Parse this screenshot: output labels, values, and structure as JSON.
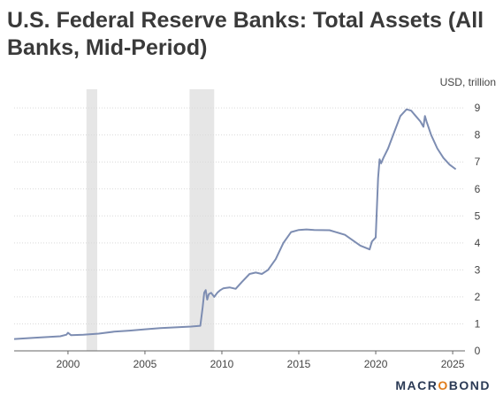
{
  "title": "U.S. Federal Reserve Banks: Total Assets (All Banks, Mid-Period)",
  "unit_label": "USD, trillion",
  "brand": {
    "pre": "MACR",
    "o": "O",
    "post": "BOND"
  },
  "colors": {
    "line": "#7d8db2",
    "shade": "#e6e6e6",
    "axis": "#666666",
    "text": "#444444"
  },
  "chart_data": {
    "type": "line",
    "title": "U.S. Federal Reserve Banks: Total Assets (All Banks, Mid-Period)",
    "ylabel": "USD, trillion",
    "xlim": [
      1996.5,
      2025.8
    ],
    "ylim": [
      0,
      9.3
    ],
    "xticks": [
      2000,
      2005,
      2010,
      2015,
      2020,
      2025
    ],
    "yticks": [
      0,
      1,
      2,
      3,
      4,
      5,
      6,
      7,
      8,
      9
    ],
    "recessions": [
      [
        2001.2,
        2001.9
      ],
      [
        2007.9,
        2009.5
      ]
    ],
    "grid": "horizontal",
    "series": [
      {
        "x": [
          1996.5,
          1998,
          1999.5,
          1999.9,
          2000,
          2000.2,
          2001,
          2002,
          2003,
          2004,
          2005,
          2006,
          2007,
          2008,
          2008.6,
          2008.75,
          2008.85,
          2008.95,
          2009.05,
          2009.15,
          2009.3,
          2009.5,
          2009.7,
          2009.9,
          2010.1,
          2010.5,
          2010.9,
          2011.3,
          2011.8,
          2012.2,
          2012.6,
          2013,
          2013.5,
          2014,
          2014.5,
          2015,
          2015.5,
          2016,
          2017,
          2018,
          2019,
          2019.6,
          2019.75,
          2020,
          2020.15,
          2020.25,
          2020.35,
          2020.5,
          2020.8,
          2021.2,
          2021.6,
          2022,
          2022.3,
          2022.6,
          2022.9,
          2023.1,
          2023.2,
          2023.3,
          2023.6,
          2024,
          2024.4,
          2024.8,
          2025.2
        ],
        "y": [
          0.44,
          0.49,
          0.54,
          0.6,
          0.67,
          0.58,
          0.6,
          0.64,
          0.71,
          0.75,
          0.8,
          0.84,
          0.87,
          0.9,
          0.93,
          1.6,
          2.15,
          2.25,
          1.9,
          2.1,
          2.15,
          2.0,
          2.15,
          2.25,
          2.32,
          2.35,
          2.3,
          2.55,
          2.85,
          2.9,
          2.85,
          3.0,
          3.4,
          4.0,
          4.4,
          4.48,
          4.5,
          4.48,
          4.47,
          4.3,
          3.9,
          3.76,
          4.05,
          4.2,
          6.4,
          7.1,
          6.95,
          7.15,
          7.5,
          8.1,
          8.7,
          8.95,
          8.9,
          8.7,
          8.5,
          8.3,
          8.7,
          8.5,
          8.0,
          7.5,
          7.15,
          6.9,
          6.73
        ]
      }
    ]
  }
}
